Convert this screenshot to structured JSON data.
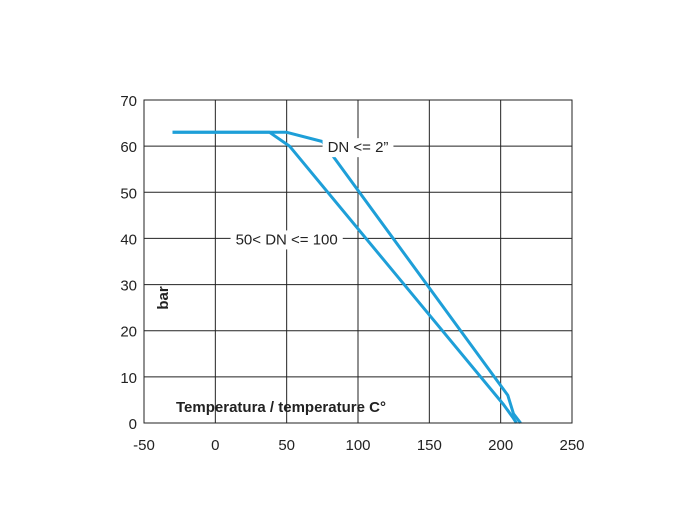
{
  "chart_data": {
    "type": "line",
    "xlabel": "Temperatura / temperature C°",
    "ylabel": "bar",
    "xlim": [
      -50,
      250
    ],
    "ylim": [
      0,
      70
    ],
    "xticks": [
      -50,
      0,
      50,
      100,
      150,
      200,
      250
    ],
    "yticks": [
      0,
      10,
      20,
      30,
      40,
      50,
      60,
      70
    ],
    "xtick_labels": [
      "-50",
      "0",
      "50",
      "100",
      "150",
      "200",
      "250"
    ],
    "ytick_labels": [
      "0",
      "10",
      "20",
      "30",
      "40",
      "50",
      "60",
      "70"
    ],
    "grid": true,
    "series": [
      {
        "name": "DN <= 2”",
        "color": "#1e9fd8",
        "points": [
          [
            -30,
            63
          ],
          [
            50,
            63
          ],
          [
            75,
            61
          ],
          [
            205,
            6
          ],
          [
            209,
            2
          ],
          [
            214,
            0
          ]
        ]
      },
      {
        "name": "50< DN <= 100",
        "color": "#1e9fd8",
        "points": [
          [
            -30,
            63
          ],
          [
            38,
            63
          ],
          [
            52,
            60
          ],
          [
            202,
            4
          ],
          [
            209,
            1
          ],
          [
            211,
            0
          ]
        ]
      }
    ],
    "annotations": [
      {
        "text": "DN <= 2”",
        "x": 100,
        "y": 60
      },
      {
        "text": "50< DN <= 100",
        "x": 50,
        "y": 40
      }
    ]
  }
}
